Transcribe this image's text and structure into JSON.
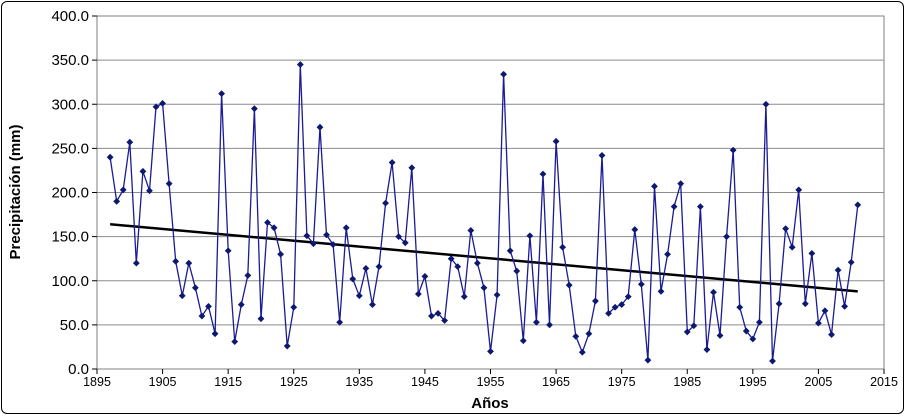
{
  "chart_data": {
    "type": "line",
    "title": "",
    "xlabel": "Años",
    "ylabel": "Precipitación (mm)",
    "xlim": [
      1895,
      2015
    ],
    "ylim": [
      0,
      400
    ],
    "yticks": [
      "0.0",
      "50.0",
      "100.0",
      "150.0",
      "200.0",
      "250.0",
      "300.0",
      "350.0",
      "400.0"
    ],
    "xticks": [
      "1895",
      "1905",
      "1915",
      "1925",
      "1935",
      "1945",
      "1955",
      "1965",
      "1975",
      "1985",
      "1995",
      "2005",
      "2015"
    ],
    "grid": "horizontal",
    "legend": "none",
    "series": [
      {
        "x": [
          1897,
          1898,
          1899,
          1900,
          1901,
          1902,
          1903,
          1904,
          1905,
          1906,
          1907,
          1908,
          1909,
          1910,
          1911,
          1912,
          1913,
          1914,
          1915,
          1916,
          1917,
          1918,
          1919,
          1920,
          1921,
          1922,
          1923,
          1924,
          1925,
          1926,
          1927,
          1928,
          1929,
          1930,
          1931,
          1932,
          1933,
          1934,
          1935,
          1936,
          1937,
          1938,
          1939,
          1940,
          1941,
          1942,
          1943,
          1944,
          1945,
          1946,
          1947,
          1948,
          1949,
          1950,
          1951,
          1952,
          1953,
          1954,
          1955,
          1956,
          1957,
          1958,
          1959,
          1960,
          1961,
          1962,
          1963,
          1964,
          1965,
          1966,
          1967,
          1968,
          1969,
          1970,
          1971,
          1972,
          1973,
          1974,
          1975,
          1976,
          1977,
          1978,
          1979,
          1980,
          1981,
          1982,
          1983,
          1984,
          1985,
          1986,
          1987,
          1988,
          1989,
          1990,
          1991,
          1992,
          1993,
          1994,
          1995,
          1996,
          1997,
          1998,
          1999,
          2000,
          2001,
          2002,
          2003,
          2004,
          2005,
          2006,
          2007,
          2008,
          2009,
          2010,
          2011
        ],
        "values": [
          240,
          190,
          203,
          257,
          120,
          224,
          202,
          297,
          301,
          210,
          122,
          83,
          120,
          92,
          60,
          71,
          40,
          312,
          134,
          31,
          73,
          106,
          295,
          57,
          166,
          160,
          130,
          26,
          70,
          345,
          151,
          142,
          274,
          152,
          141,
          53,
          160,
          102,
          83,
          114,
          73,
          116,
          188,
          234,
          150,
          143,
          228,
          85,
          105,
          60,
          63,
          55,
          125,
          116,
          82,
          157,
          120,
          92,
          20,
          84,
          334,
          134,
          111,
          32,
          151,
          53,
          221,
          50,
          258,
          138,
          95,
          37,
          19,
          40,
          77,
          242,
          63,
          70,
          73,
          82,
          158,
          96,
          10,
          207,
          88,
          130,
          184,
          210,
          42,
          49,
          184,
          22,
          87,
          38,
          150,
          248,
          70,
          43,
          34,
          53,
          300,
          9,
          74,
          159,
          138,
          203,
          74,
          131,
          52,
          66,
          39,
          112,
          71,
          121,
          186
        ]
      }
    ],
    "trendline": {
      "x": [
        1897,
        2011
      ],
      "y": [
        164,
        88
      ]
    },
    "colors": {
      "series": "#1b1b96",
      "marker": "#0d1870",
      "trend": "#000000",
      "grid": "#8c8c8c"
    }
  }
}
